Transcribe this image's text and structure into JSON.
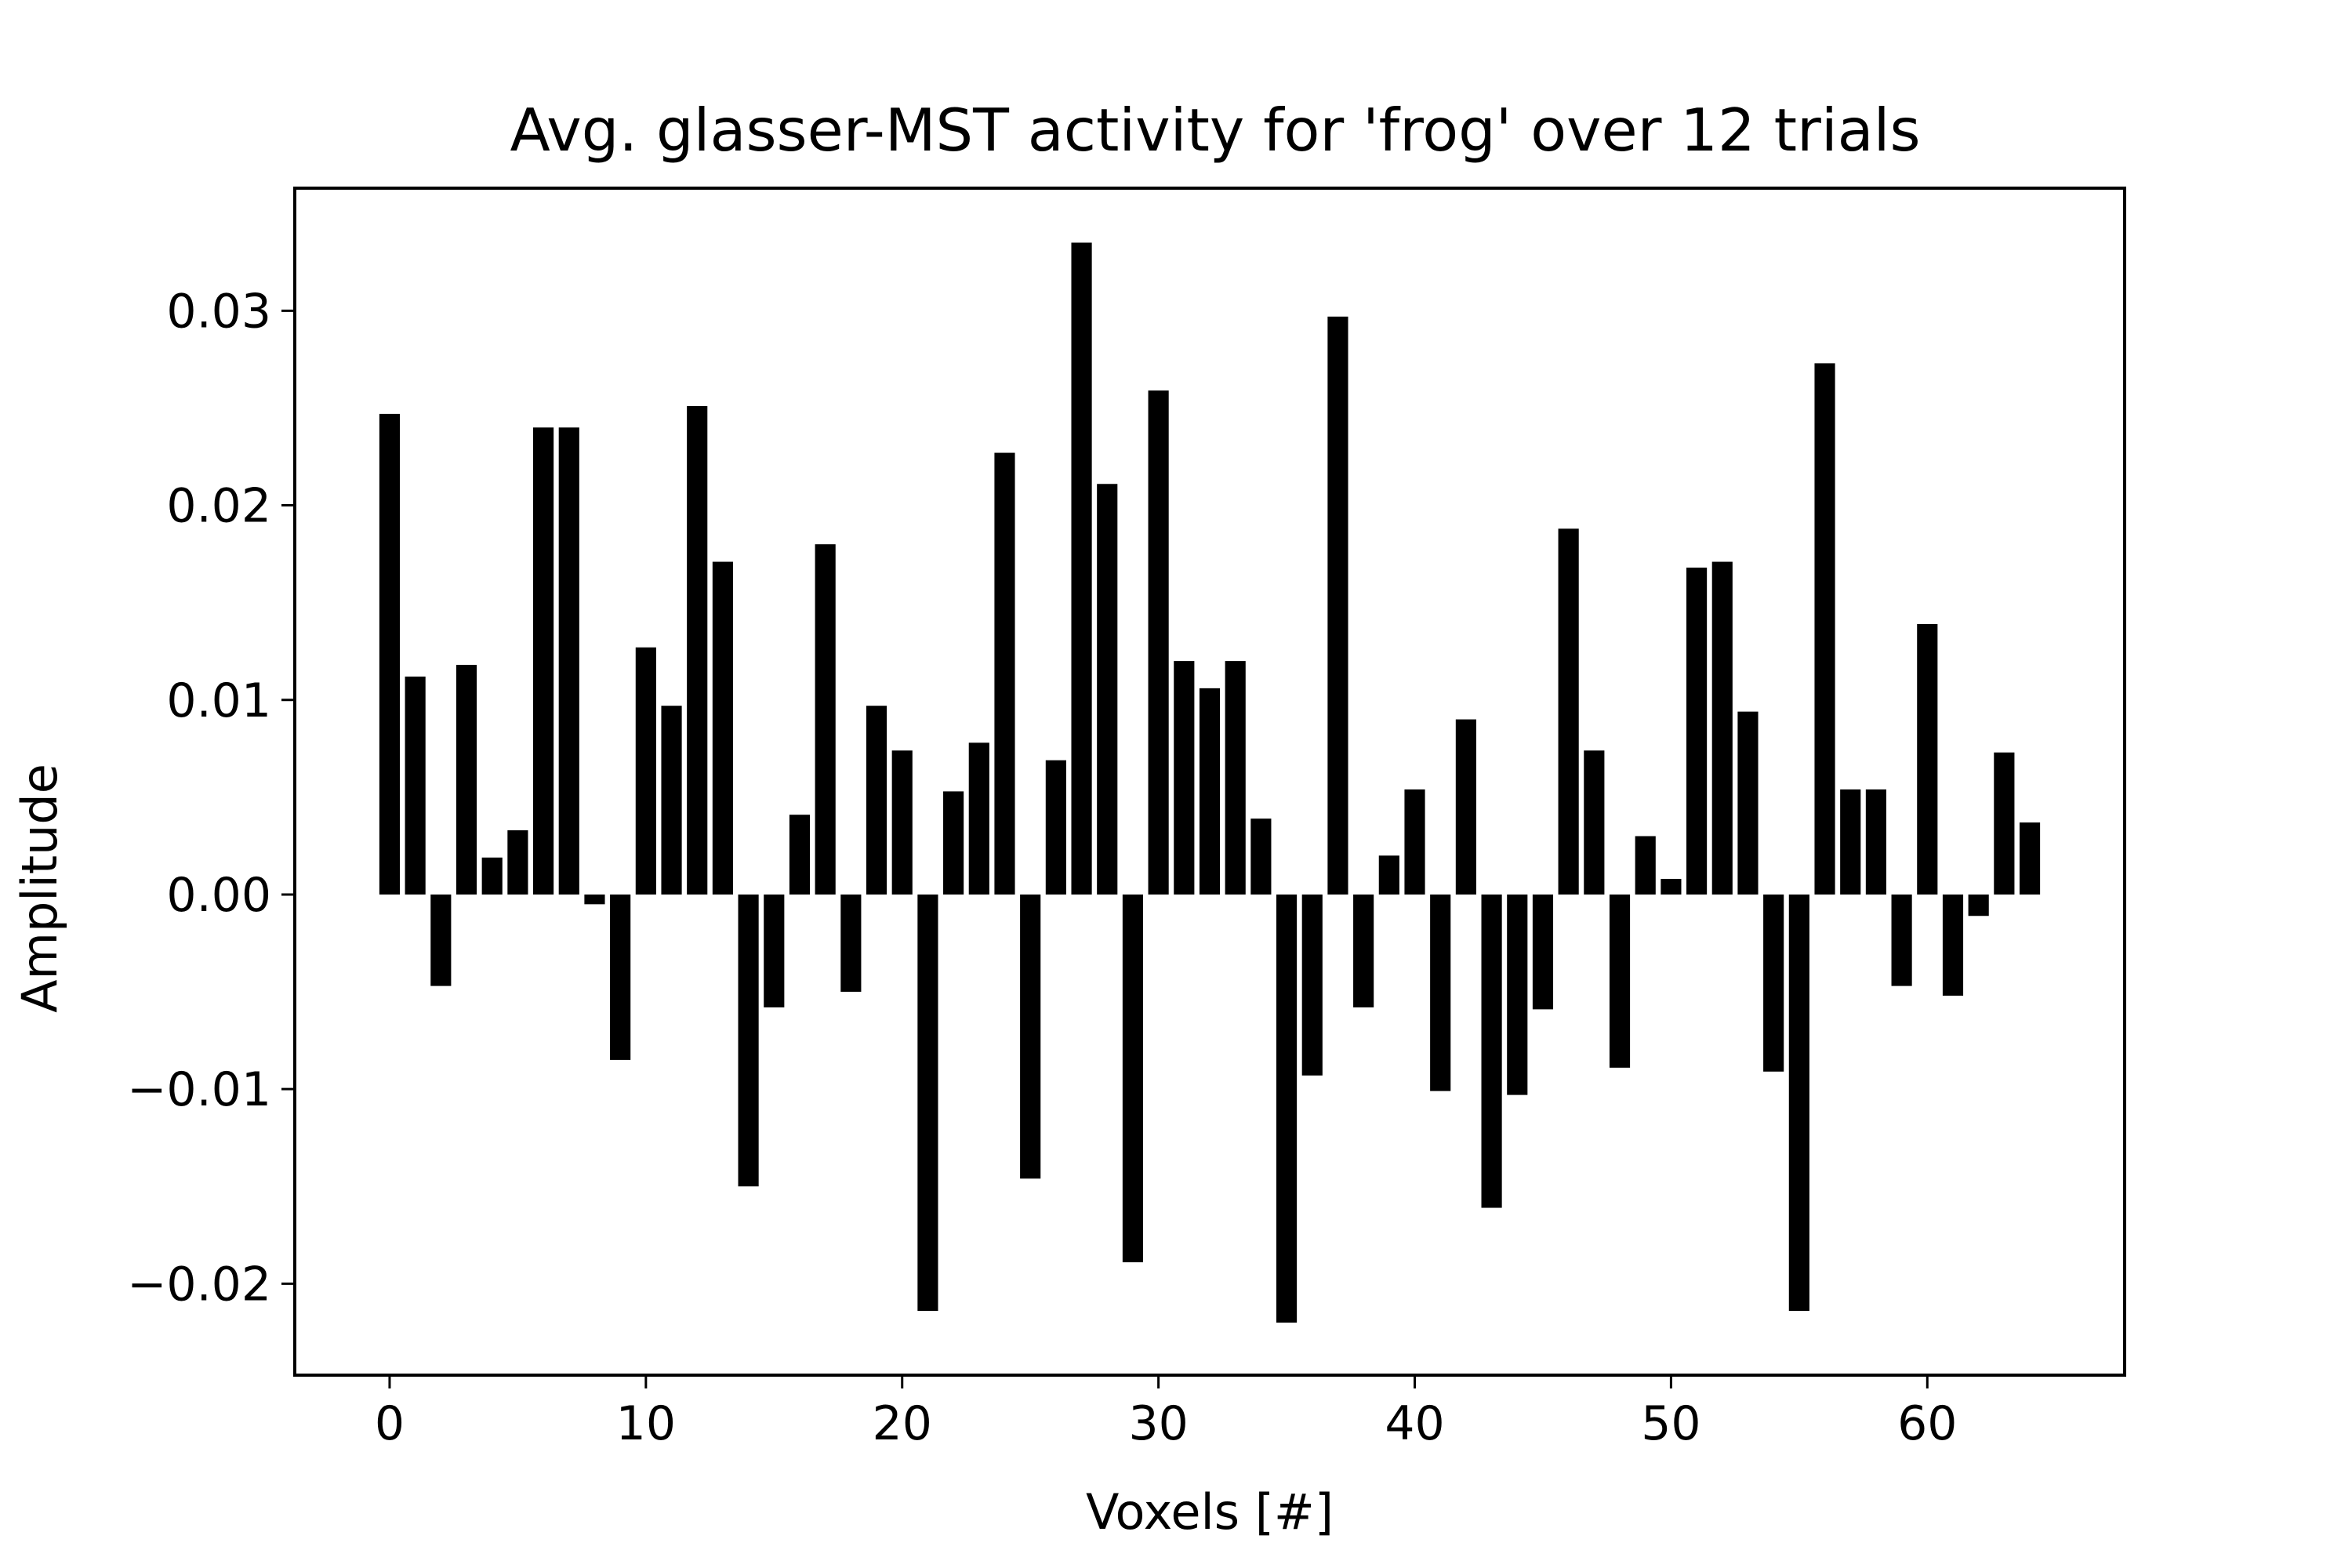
{
  "chart_data": {
    "type": "bar",
    "title": "Avg. glasser-MST activity for 'frog' over 12 trials",
    "xlabel": "Voxels [#]",
    "ylabel": "Amplitude",
    "x": [
      0,
      1,
      2,
      3,
      4,
      5,
      6,
      7,
      8,
      9,
      10,
      11,
      12,
      13,
      14,
      15,
      16,
      17,
      18,
      19,
      20,
      21,
      22,
      23,
      24,
      25,
      26,
      27,
      28,
      29,
      30,
      31,
      32,
      33,
      34,
      35,
      36,
      37,
      38,
      39,
      40,
      41,
      42,
      43,
      44,
      45,
      46,
      47,
      48,
      49,
      50,
      51,
      52,
      53,
      54,
      55,
      56,
      57,
      58,
      59,
      60,
      61,
      62,
      63,
      64
    ],
    "values": [
      0.0247,
      0.0112,
      -0.0047,
      0.0118,
      0.0019,
      0.0033,
      0.024,
      0.024,
      -0.0005,
      -0.0085,
      0.0127,
      0.0097,
      0.0251,
      0.0171,
      -0.015,
      -0.0058,
      0.0041,
      0.018,
      -0.005,
      0.0097,
      0.0074,
      -0.0214,
      0.0053,
      0.0078,
      0.0227,
      -0.0146,
      0.0069,
      0.0335,
      0.0211,
      -0.0189,
      0.0259,
      0.012,
      0.0106,
      0.012,
      0.0039,
      -0.022,
      -0.0093,
      0.0297,
      -0.0058,
      0.002,
      0.0054,
      -0.0101,
      0.009,
      -0.0161,
      -0.0103,
      -0.0059,
      0.0188,
      0.0074,
      -0.0089,
      0.003,
      0.0008,
      0.0168,
      0.0171,
      0.0094,
      -0.0091,
      -0.0214,
      0.0273,
      0.0054,
      0.0054,
      -0.0047,
      0.0139,
      -0.0052,
      -0.0011,
      0.0073,
      0.0037
    ],
    "xlim": [
      -3.7,
      67.7
    ],
    "ylim": [
      -0.0247,
      0.0363
    ],
    "xticks": [
      0,
      10,
      20,
      30,
      40,
      50,
      60
    ],
    "xtick_labels": [
      "0",
      "10",
      "20",
      "30",
      "40",
      "50",
      "60"
    ],
    "yticks": [
      -0.02,
      -0.01,
      0.0,
      0.01,
      0.02,
      0.03
    ],
    "ytick_labels": [
      "−0.02",
      "−0.01",
      "0.00",
      "0.01",
      "0.02",
      "0.03"
    ],
    "bar_width": 0.8,
    "bar_color": "#000000",
    "grid": false,
    "legend": false
  }
}
